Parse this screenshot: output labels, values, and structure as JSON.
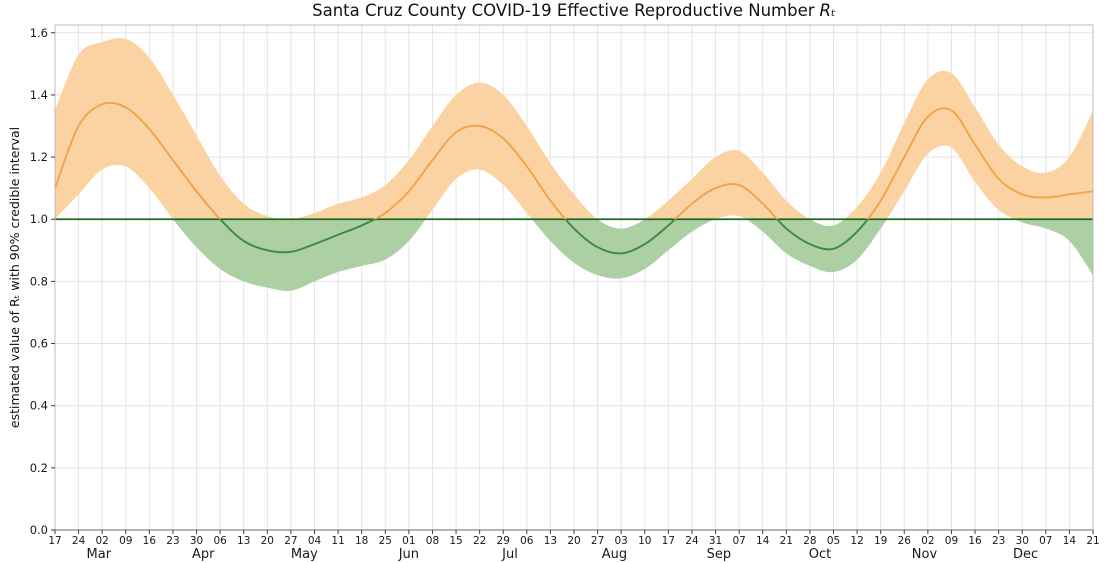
{
  "figure": {
    "title_main": "Santa Cruz County COVID-19 Effective Reproductive Number",
    "title_math": "Rₜ",
    "ylabel": "estimated value of Rₜ with 90% credible interval"
  },
  "chart_data": {
    "type": "line",
    "title": "Santa Cruz County COVID-19 Effective Reproductive Number Rt",
    "xlabel": "",
    "ylabel": "estimated value of Rt with 90% credible interval",
    "ylim": [
      0,
      1.625
    ],
    "grid": true,
    "legend": "none",
    "threshold": 1.0,
    "y_ticks": [
      0.0,
      0.2,
      0.4,
      0.6,
      0.8,
      1.0,
      1.2,
      1.4,
      1.6
    ],
    "x_tick_labels": [
      "17",
      "24",
      "02",
      "09",
      "16",
      "23",
      "30",
      "06",
      "13",
      "20",
      "27",
      "04",
      "11",
      "18",
      "25",
      "01",
      "08",
      "15",
      "22",
      "29",
      "06",
      "13",
      "20",
      "27",
      "03",
      "10",
      "17",
      "24",
      "31",
      "07",
      "14",
      "21",
      "28",
      "05",
      "12",
      "19",
      "26",
      "02",
      "09",
      "16",
      "23",
      "30",
      "07",
      "14",
      "21"
    ],
    "month_labels": [
      {
        "label": "Mar",
        "week_position": 1.857
      },
      {
        "label": "Apr",
        "week_position": 6.286
      },
      {
        "label": "May",
        "week_position": 10.571
      },
      {
        "label": "Jun",
        "week_position": 15.0
      },
      {
        "label": "Jul",
        "week_position": 19.286
      },
      {
        "label": "Aug",
        "week_position": 23.714
      },
      {
        "label": "Sep",
        "week_position": 28.143
      },
      {
        "label": "Oct",
        "week_position": 32.429
      },
      {
        "label": "Nov",
        "week_position": 36.857
      },
      {
        "label": "Dec",
        "week_position": 41.143
      }
    ],
    "series": [
      {
        "name": "Rt median",
        "values": [
          1.1,
          1.3,
          1.37,
          1.36,
          1.29,
          1.19,
          1.09,
          1.0,
          0.93,
          0.9,
          0.895,
          0.92,
          0.95,
          0.98,
          1.02,
          1.09,
          1.19,
          1.28,
          1.3,
          1.26,
          1.17,
          1.06,
          0.97,
          0.91,
          0.89,
          0.92,
          0.98,
          1.05,
          1.1,
          1.11,
          1.05,
          0.97,
          0.92,
          0.905,
          0.96,
          1.06,
          1.2,
          1.33,
          1.35,
          1.24,
          1.13,
          1.08,
          1.07,
          1.08,
          1.09
        ]
      },
      {
        "name": "90% credible interval upper",
        "values": [
          1.35,
          1.53,
          1.57,
          1.58,
          1.52,
          1.4,
          1.27,
          1.14,
          1.05,
          1.01,
          1.0,
          1.02,
          1.05,
          1.07,
          1.11,
          1.19,
          1.3,
          1.4,
          1.44,
          1.4,
          1.3,
          1.18,
          1.08,
          1.0,
          0.97,
          1.0,
          1.06,
          1.13,
          1.2,
          1.22,
          1.15,
          1.06,
          1.0,
          0.98,
          1.04,
          1.15,
          1.31,
          1.45,
          1.47,
          1.36,
          1.24,
          1.17,
          1.15,
          1.2,
          1.35
        ]
      },
      {
        "name": "90% credible interval lower",
        "values": [
          1.0,
          1.08,
          1.16,
          1.17,
          1.1,
          1.0,
          0.91,
          0.84,
          0.8,
          0.78,
          0.77,
          0.8,
          0.83,
          0.85,
          0.87,
          0.93,
          1.03,
          1.13,
          1.16,
          1.11,
          1.02,
          0.93,
          0.86,
          0.82,
          0.81,
          0.84,
          0.9,
          0.96,
          1.0,
          1.01,
          0.96,
          0.89,
          0.85,
          0.83,
          0.87,
          0.97,
          1.09,
          1.21,
          1.23,
          1.12,
          1.03,
          0.99,
          0.97,
          0.93,
          0.82
        ]
      }
    ],
    "colors": {
      "line_above": "#f2a24b",
      "line_below": "#3c8a3c",
      "band_above": "#fbd3a2",
      "band_below": "#accfa4",
      "threshold_line": "#1b691b",
      "grid": "#e4e4e4",
      "spine": "#bdbdbd",
      "tick_mark": "#3a3a3a",
      "tick_text": "#1a1a1a"
    }
  }
}
